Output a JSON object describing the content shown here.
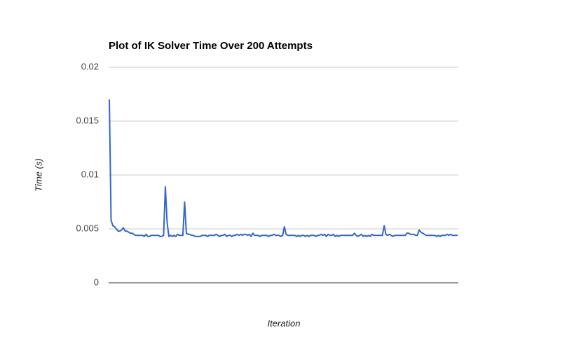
{
  "chart_data": {
    "type": "line",
    "title": "Plot of IK Solver Time Over 200 Attempts",
    "x_label": "Iteration",
    "y_label": "Time (s)",
    "ylim": [
      0,
      0.02
    ],
    "yticks": [
      0,
      0.005,
      0.01,
      0.015,
      0.02
    ],
    "grid": true,
    "color": "#3366cc",
    "values": [
      0.017,
      0.0058,
      0.0053,
      0.0052,
      0.005,
      0.0048,
      0.0048,
      0.0049,
      0.0051,
      0.0048,
      0.0048,
      0.0047,
      0.0046,
      0.0046,
      0.0045,
      0.0044,
      0.0044,
      0.0044,
      0.0044,
      0.0044,
      0.0043,
      0.0045,
      0.0043,
      0.0043,
      0.0044,
      0.0044,
      0.0044,
      0.0044,
      0.0044,
      0.0043,
      0.0043,
      0.0044,
      0.0089,
      0.0056,
      0.0043,
      0.0044,
      0.0043,
      0.0044,
      0.0043,
      0.0045,
      0.0044,
      0.0044,
      0.0044,
      0.0075,
      0.0046,
      0.0045,
      0.0045,
      0.0044,
      0.0044,
      0.0043,
      0.0043,
      0.0043,
      0.0043,
      0.0044,
      0.0044,
      0.0044,
      0.0043,
      0.0044,
      0.0044,
      0.0044,
      0.0044,
      0.0045,
      0.0044,
      0.0043,
      0.0044,
      0.0044,
      0.0045,
      0.0043,
      0.0044,
      0.0044,
      0.0043,
      0.0044,
      0.0044,
      0.0045,
      0.0044,
      0.0045,
      0.0044,
      0.0045,
      0.0045,
      0.0044,
      0.0045,
      0.0043,
      0.0046,
      0.0044,
      0.0044,
      0.0044,
      0.0043,
      0.0044,
      0.0044,
      0.0044,
      0.0044,
      0.0043,
      0.0044,
      0.0044,
      0.0045,
      0.0044,
      0.0044,
      0.0044,
      0.0043,
      0.0044,
      0.0052,
      0.0045,
      0.0044,
      0.0044,
      0.0044,
      0.0044,
      0.0044,
      0.0043,
      0.0044,
      0.0043,
      0.0044,
      0.0044,
      0.0043,
      0.0044,
      0.0043,
      0.0044,
      0.0044,
      0.0044,
      0.0043,
      0.0044,
      0.0044,
      0.0045,
      0.0044,
      0.0045,
      0.0043,
      0.0045,
      0.0044,
      0.0044,
      0.0045,
      0.0043,
      0.0044,
      0.0043,
      0.0044,
      0.0044,
      0.0044,
      0.0044,
      0.0044,
      0.0044,
      0.0044,
      0.0044,
      0.0046,
      0.0044,
      0.0043,
      0.0044,
      0.0045,
      0.0043,
      0.0044,
      0.0043,
      0.0044,
      0.0043,
      0.0045,
      0.0044,
      0.0044,
      0.0044,
      0.0044,
      0.0044,
      0.0044,
      0.0053,
      0.0045,
      0.0044,
      0.0045,
      0.0044,
      0.0043,
      0.0044,
      0.0044,
      0.0044,
      0.0044,
      0.0044,
      0.0044,
      0.0044,
      0.0046,
      0.0046,
      0.0045,
      0.0045,
      0.0045,
      0.0044,
      0.0044,
      0.0049,
      0.0047,
      0.0046,
      0.0045,
      0.0044,
      0.0044,
      0.0044,
      0.0044,
      0.0044,
      0.0044,
      0.0043,
      0.0044,
      0.0043,
      0.0044,
      0.0044,
      0.0044,
      0.0045,
      0.0044,
      0.0045,
      0.0044,
      0.0044,
      0.0044,
      0.0044
    ]
  }
}
